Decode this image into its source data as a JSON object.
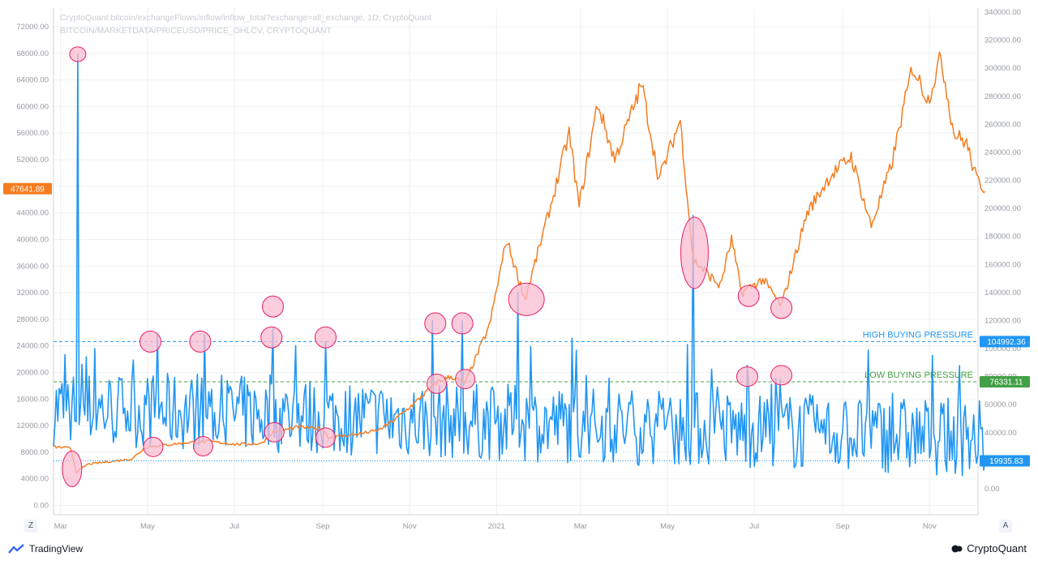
{
  "header": {
    "line1": "CryptoQuant:bitcoin/exchangeFlows/inflow/inflow_total?exchange=all_exchange, 1D, CryptoQuant",
    "line2": "BITCOIN/MARKETDATA/PRICEUSD/PRICE_OHLCV, CRYPTOQUANT"
  },
  "footer": {
    "left_brand": "TradingView",
    "right_brand": "CryptoQuant"
  },
  "buttons": {
    "zoom": "Z",
    "auto": "A"
  },
  "colors": {
    "price": "#f57c1f",
    "inflow": "#2196f3",
    "high_line": "#2196f3",
    "low_line": "#43a047",
    "highlight_fill": "#f8bbd0",
    "highlight_stroke": "#e91e63",
    "grid": "#eef0f3",
    "axis_text": "#9598a1"
  },
  "chart_data": {
    "type": "line",
    "title": "CryptoQuant:bitcoin/exchangeFlows/inflow/inflow_total?exchange=all_exchange, 1D, CryptoQuant",
    "x_axis": {
      "tick_labels": [
        "Mar",
        "May",
        "Jul",
        "Sep",
        "Nov",
        "2021",
        "Mar",
        "May",
        "Jul",
        "Sep",
        "Nov"
      ],
      "range": [
        "2020-02-25",
        "2021-12-05"
      ]
    },
    "left_axis": {
      "label": "",
      "range": [
        0,
        72000
      ],
      "tick_labels": [
        "0.00",
        "4000.00",
        "8000.00",
        "12000.00",
        "16000.00",
        "20000.00",
        "24000.00",
        "28000.00",
        "32000.00",
        "36000.00",
        "40000.00",
        "44000.00",
        "48000.00",
        "52000.00",
        "56000.00",
        "60000.00",
        "64000.00",
        "68000.00",
        "72000.00"
      ],
      "current_value_label": "47641.89"
    },
    "right_axis": {
      "label": "",
      "range": [
        0,
        340000
      ],
      "tick_labels": [
        "0.00",
        "20000.00",
        "40000.00",
        "60000.00",
        "80000.00",
        "100000.00",
        "120000.00",
        "140000.00",
        "160000.00",
        "180000.00",
        "200000.00",
        "220000.00",
        "240000.00",
        "260000.00",
        "280000.00",
        "300000.00",
        "320000.00",
        "340000.00"
      ],
      "value_labels": [
        "104992.36",
        "76331.11",
        "19935.83"
      ]
    },
    "grid": true,
    "series": [
      {
        "name": "BITCOIN/MARKETDATA/PRICEUSD/PRICE_OHLCV",
        "axis": "left",
        "points": [
          [
            "2020-02-25",
            8800
          ],
          [
            "2020-03-08",
            8600
          ],
          [
            "2020-03-12",
            5000
          ],
          [
            "2020-03-20",
            6200
          ],
          [
            "2020-04-01",
            6500
          ],
          [
            "2020-04-20",
            7000
          ],
          [
            "2020-04-30",
            8800
          ],
          [
            "2020-05-10",
            9000
          ],
          [
            "2020-05-31",
            9500
          ],
          [
            "2020-06-15",
            9600
          ],
          [
            "2020-07-01",
            9200
          ],
          [
            "2020-07-20",
            9300
          ],
          [
            "2020-07-28",
            11000
          ],
          [
            "2020-08-15",
            11800
          ],
          [
            "2020-09-01",
            11500
          ],
          [
            "2020-09-05",
            10200
          ],
          [
            "2020-09-25",
            10700
          ],
          [
            "2020-10-10",
            11300
          ],
          [
            "2020-10-21",
            12800
          ],
          [
            "2020-11-05",
            15500
          ],
          [
            "2020-11-20",
            18500
          ],
          [
            "2020-11-30",
            19400
          ],
          [
            "2020-12-10",
            18300
          ],
          [
            "2020-12-16",
            21500
          ],
          [
            "2020-12-27",
            27000
          ],
          [
            "2021-01-08",
            40000
          ],
          [
            "2021-01-21",
            31000
          ],
          [
            "2021-02-08",
            45000
          ],
          [
            "2021-02-21",
            56000
          ],
          [
            "2021-02-28",
            45000
          ],
          [
            "2021-03-13",
            60500
          ],
          [
            "2021-03-25",
            52000
          ],
          [
            "2021-04-13",
            63400
          ],
          [
            "2021-04-25",
            49000
          ],
          [
            "2021-05-10",
            58000
          ],
          [
            "2021-05-19",
            37000
          ],
          [
            "2021-06-07",
            33000
          ],
          [
            "2021-06-15",
            40000
          ],
          [
            "2021-06-22",
            32000
          ],
          [
            "2021-07-07",
            34000
          ],
          [
            "2021-07-20",
            30000
          ],
          [
            "2021-08-07",
            44000
          ],
          [
            "2021-08-23",
            49500
          ],
          [
            "2021-09-07",
            52500
          ],
          [
            "2021-09-21",
            42000
          ],
          [
            "2021-10-05",
            51000
          ],
          [
            "2021-10-20",
            66000
          ],
          [
            "2021-10-31",
            61000
          ],
          [
            "2021-11-09",
            67500
          ],
          [
            "2021-11-18",
            56000
          ],
          [
            "2021-11-27",
            54500
          ],
          [
            "2021-12-04",
            49000
          ],
          [
            "2021-12-10",
            47641.89
          ]
        ]
      },
      {
        "name": "CryptoQuant:bitcoin/exchangeFlows/inflow/inflow_total",
        "axis": "right",
        "points": [
          [
            "2020-03-08",
            35000
          ],
          [
            "2020-03-13",
            310000
          ],
          [
            "2020-03-25",
            100000
          ],
          [
            "2020-05-08",
            110000
          ],
          [
            "2020-06-10",
            110000
          ],
          [
            "2020-07-28",
            115000
          ],
          [
            "2020-09-03",
            105000
          ],
          [
            "2020-11-17",
            120000
          ],
          [
            "2020-12-08",
            120000
          ],
          [
            "2021-01-16",
            140000
          ],
          [
            "2021-05-19",
            195000
          ],
          [
            "2021-06-27",
            75000
          ],
          [
            "2021-07-19",
            78000
          ],
          [
            "2021-12-10",
            19935.83
          ]
        ]
      }
    ],
    "annotations": [
      {
        "type": "hline",
        "axis": "right",
        "value": 104992.36,
        "label": "HIGH BUYING PRESSURE"
      },
      {
        "type": "hline",
        "axis": "right",
        "value": 76331.11,
        "label": "LOW BUYING PRESSURE"
      },
      {
        "type": "hline",
        "axis": "right",
        "value": 19935.83,
        "label": ""
      }
    ]
  }
}
